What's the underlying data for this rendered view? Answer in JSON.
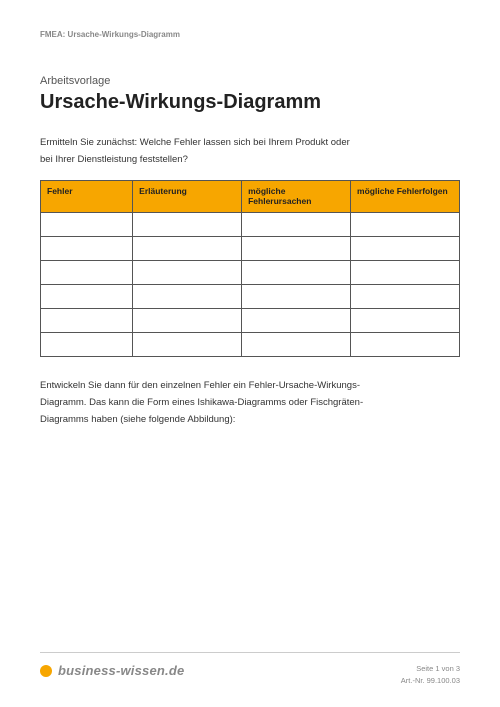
{
  "header": {
    "meta": "FMEA: Ursache-Wirkungs-Diagramm"
  },
  "doc": {
    "pretitle": "Arbeitsvorlage",
    "title": "Ursache-Wirkungs-Diagramm",
    "intro_line1": "Ermitteln Sie zunächst: Welche Fehler lassen sich bei Ihrem Produkt oder",
    "intro_line2": "bei Ihrer Dienstleistung feststellen?",
    "outro_line1": "Entwickeln Sie dann für den einzelnen Fehler ein Fehler-Ursache-Wirkungs-",
    "outro_line2": "Diagramm. Das kann die Form eines Ishikawa-Diagramms oder Fischgräten-",
    "outro_line3": "Diagramms haben (siehe folgende Abbildung):"
  },
  "table": {
    "type": "table",
    "header_bg": "#f7a600",
    "border_color": "#555555",
    "columns": [
      {
        "label": "Fehler",
        "width": "22%"
      },
      {
        "label": "Erläuterung",
        "width": "26%"
      },
      {
        "label": "mögliche Fehlerursachen",
        "width": "26%"
      },
      {
        "label": "mögliche Fehlerfolgen",
        "width": "26%"
      }
    ],
    "body_rows": 6
  },
  "footer": {
    "brand": "business-wissen.de",
    "brand_color": "#f7a600",
    "page_label": "Seite 1 von 3",
    "art_nr": "Art.-Nr. 99.100.03"
  }
}
